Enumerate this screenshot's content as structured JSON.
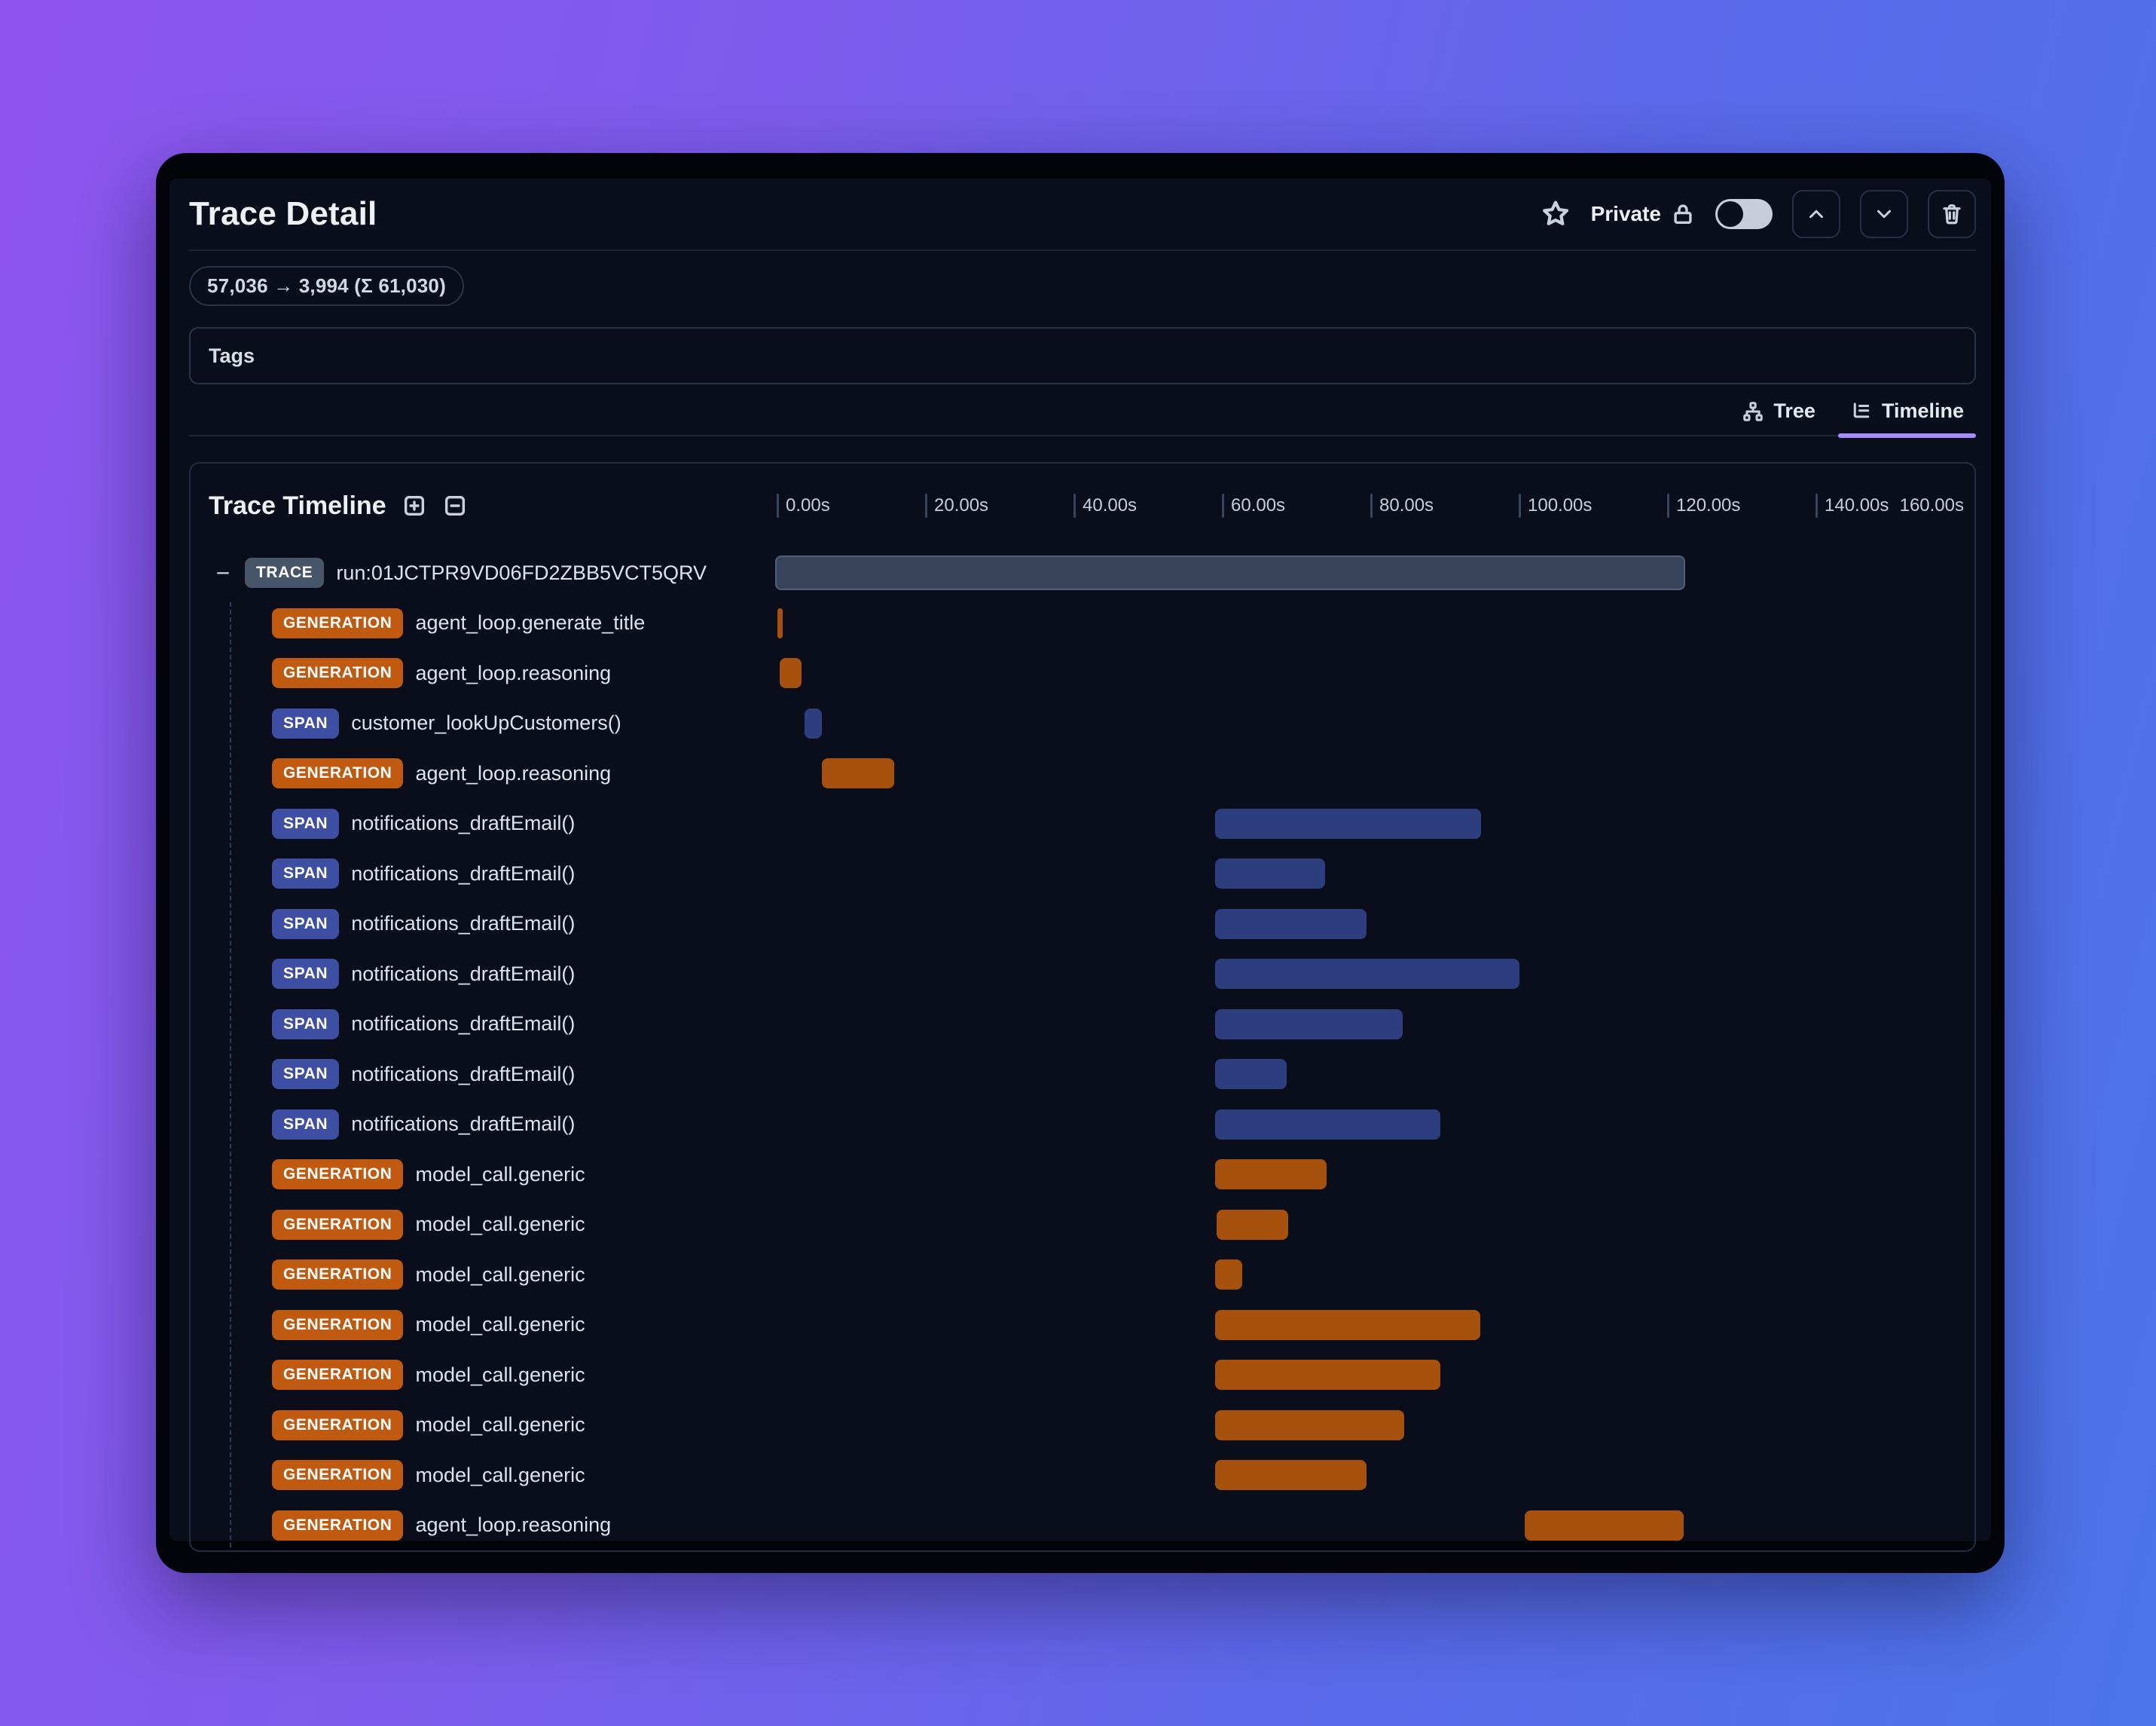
{
  "header": {
    "title": "Trace Detail",
    "privacy_label": "Private",
    "token_usage": "57,036 → 3,994 (Σ 61,030)",
    "tags_label": "Tags"
  },
  "tabs": [
    {
      "id": "tree",
      "label": "Tree",
      "active": false
    },
    {
      "id": "timeline",
      "label": "Timeline",
      "active": true
    }
  ],
  "timeline": {
    "title": "Trace Timeline",
    "axis": {
      "unit": "s",
      "max": 160,
      "ticks": [
        {
          "label": "0.00s",
          "t": 0
        },
        {
          "label": "20.00s",
          "t": 20
        },
        {
          "label": "40.00s",
          "t": 40
        },
        {
          "label": "60.00s",
          "t": 60
        },
        {
          "label": "80.00s",
          "t": 80
        },
        {
          "label": "100.00s",
          "t": 100
        },
        {
          "label": "120.00s",
          "t": 120
        },
        {
          "label": "140.00s",
          "t": 140
        },
        {
          "label": "160.00s",
          "t": 160,
          "edge": true
        }
      ]
    },
    "rows": [
      {
        "type": "trace",
        "badge": "TRACE",
        "label": "run:01JCTPR9VD06FD2ZBB5VCT5QRV",
        "start": 0,
        "end": 122.5,
        "collapsible": true
      },
      {
        "type": "generation",
        "badge": "GENERATION",
        "label": "agent_loop.generate_title",
        "start": 0.3,
        "end": 1.0
      },
      {
        "type": "generation",
        "badge": "GENERATION",
        "label": "agent_loop.reasoning",
        "start": 0.6,
        "end": 3.5
      },
      {
        "type": "span",
        "badge": "SPAN",
        "label": "customer_lookUpCustomers()",
        "start": 4.0,
        "end": 6.3
      },
      {
        "type": "generation",
        "badge": "GENERATION",
        "label": "agent_loop.reasoning",
        "start": 6.3,
        "end": 16.0
      },
      {
        "type": "span",
        "badge": "SPAN",
        "label": "notifications_draftEmail()",
        "start": 59.2,
        "end": 95.0
      },
      {
        "type": "span",
        "badge": "SPAN",
        "label": "notifications_draftEmail()",
        "start": 59.2,
        "end": 74.0
      },
      {
        "type": "span",
        "badge": "SPAN",
        "label": "notifications_draftEmail()",
        "start": 59.2,
        "end": 79.6
      },
      {
        "type": "span",
        "badge": "SPAN",
        "label": "notifications_draftEmail()",
        "start": 59.2,
        "end": 100.2
      },
      {
        "type": "span",
        "badge": "SPAN",
        "label": "notifications_draftEmail()",
        "start": 59.2,
        "end": 84.5
      },
      {
        "type": "span",
        "badge": "SPAN",
        "label": "notifications_draftEmail()",
        "start": 59.2,
        "end": 68.8
      },
      {
        "type": "span",
        "badge": "SPAN",
        "label": "notifications_draftEmail()",
        "start": 59.2,
        "end": 89.5
      },
      {
        "type": "generation",
        "badge": "GENERATION",
        "label": "model_call.generic",
        "start": 59.2,
        "end": 74.2
      },
      {
        "type": "generation",
        "badge": "GENERATION",
        "label": "model_call.generic",
        "start": 59.4,
        "end": 69.0
      },
      {
        "type": "generation",
        "badge": "GENERATION",
        "label": "model_call.generic",
        "start": 59.2,
        "end": 62.9
      },
      {
        "type": "generation",
        "badge": "GENERATION",
        "label": "model_call.generic",
        "start": 59.2,
        "end": 94.9
      },
      {
        "type": "generation",
        "badge": "GENERATION",
        "label": "model_call.generic",
        "start": 59.2,
        "end": 89.5
      },
      {
        "type": "generation",
        "badge": "GENERATION",
        "label": "model_call.generic",
        "start": 59.2,
        "end": 84.7
      },
      {
        "type": "generation",
        "badge": "GENERATION",
        "label": "model_call.generic",
        "start": 59.2,
        "end": 79.6
      },
      {
        "type": "generation",
        "badge": "GENERATION",
        "label": "agent_loop.reasoning",
        "start": 100.9,
        "end": 122.3
      }
    ]
  },
  "colors": {
    "accent_underline": "#A78BFA",
    "icon": "#C9D1DD",
    "toggle_track": "#C7CEDA",
    "badge_trace": "#475569",
    "badge_generation": "#C05A10",
    "badge_span": "#3E4EA3",
    "bar_trace": "#36435B",
    "bar_generation": "#A7510E",
    "bar_span": "#2C3E7E"
  }
}
